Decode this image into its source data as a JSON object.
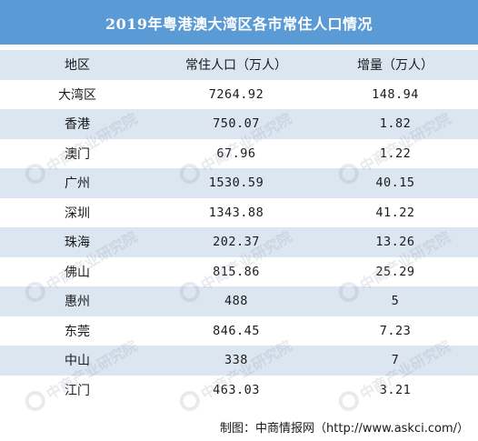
{
  "title": "2019年粤港澳大湾区各市常住人口情况",
  "columns": [
    "地区",
    "常住人口（万人）",
    "增量（万人）"
  ],
  "rows": [
    [
      "大湾区",
      "7264.92",
      "148.94"
    ],
    [
      "香港",
      "750.07",
      "1.82"
    ],
    [
      "澳门",
      "67.96",
      "1.22"
    ],
    [
      "广州",
      "1530.59",
      "40.15"
    ],
    [
      "深圳",
      "1343.88",
      "41.22"
    ],
    [
      "珠海",
      "202.37",
      "13.26"
    ],
    [
      "佛山",
      "815.86",
      "25.29"
    ],
    [
      "惠州",
      "488",
      "5"
    ],
    [
      "东莞",
      "846.45",
      "7.23"
    ],
    [
      "中山",
      "338",
      "7"
    ],
    [
      "江门",
      "463.03",
      "3.21"
    ]
  ],
  "source": "制图：中商情报网（http://www.askci.com/）",
  "watermark_text": "中商产业研究院",
  "colors": {
    "title_bg": "#5b9bd5",
    "stripe_bg": "#dce6f1"
  }
}
